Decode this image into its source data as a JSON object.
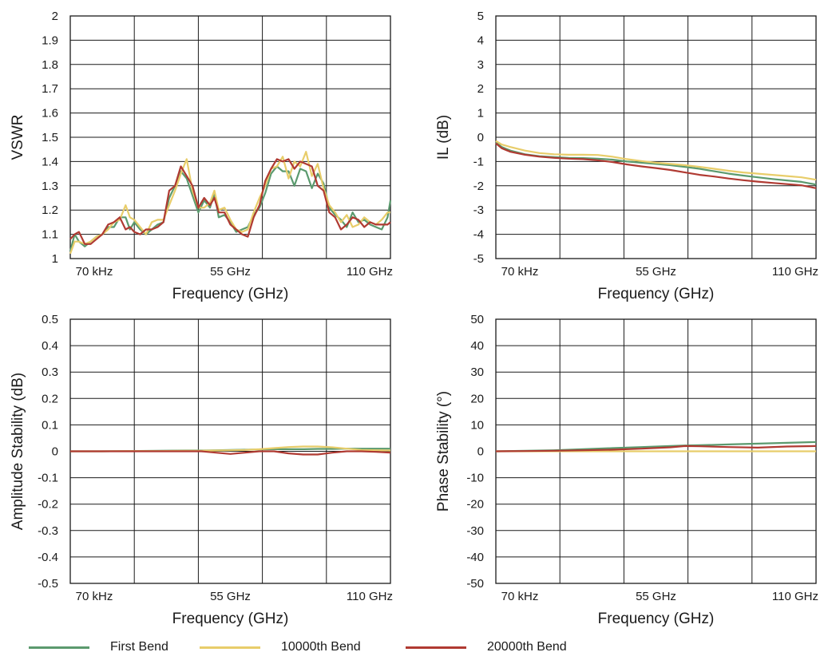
{
  "legend": {
    "items": [
      {
        "label": "First Bend",
        "color": "#5b9a6e"
      },
      {
        "label": "10000th Bend",
        "color": "#e8cd6a"
      },
      {
        "label": "20000th Bend",
        "color": "#b03a32"
      }
    ]
  },
  "chart_data": [
    {
      "type": "line",
      "ylabel": "VSWR",
      "xlabel": "Frequency (GHz)",
      "xlim": [
        0,
        110
      ],
      "ylim": [
        1,
        2
      ],
      "yticks": [
        1,
        1.1,
        1.2,
        1.3,
        1.4,
        1.5,
        1.6,
        1.7,
        1.8,
        1.9,
        2
      ],
      "xtick_labels": [
        "70 kHz",
        "55 GHz",
        "110 GHz"
      ],
      "grid": true,
      "x": [
        0,
        1.5,
        3,
        5,
        7,
        9,
        11,
        13,
        15,
        17,
        19,
        20.5,
        22,
        24,
        26,
        28,
        30,
        32,
        34,
        36,
        38,
        40,
        42,
        44,
        46,
        48,
        49.5,
        51,
        53,
        55,
        57,
        59,
        61,
        63,
        65,
        67,
        69,
        71,
        73,
        75,
        77,
        79,
        81,
        83,
        85,
        87,
        89,
        91,
        93,
        95,
        97,
        99,
        101,
        103,
        105,
        107,
        109,
        110
      ],
      "series": [
        {
          "name": "First Bend",
          "color": "#5b9a6e",
          "values": [
            1.03,
            1.1,
            1.07,
            1.05,
            1.07,
            1.09,
            1.1,
            1.13,
            1.13,
            1.17,
            1.17,
            1.12,
            1.15,
            1.12,
            1.1,
            1.12,
            1.14,
            1.15,
            1.25,
            1.3,
            1.36,
            1.33,
            1.26,
            1.19,
            1.24,
            1.21,
            1.27,
            1.17,
            1.18,
            1.15,
            1.11,
            1.12,
            1.13,
            1.18,
            1.21,
            1.27,
            1.35,
            1.38,
            1.36,
            1.36,
            1.3,
            1.37,
            1.36,
            1.29,
            1.35,
            1.31,
            1.21,
            1.18,
            1.16,
            1.13,
            1.19,
            1.15,
            1.16,
            1.14,
            1.13,
            1.12,
            1.17,
            1.24
          ]
        },
        {
          "name": "10000th Bend",
          "color": "#e8cd6a",
          "values": [
            1.02,
            1.07,
            1.07,
            1.06,
            1.07,
            1.09,
            1.1,
            1.12,
            1.15,
            1.16,
            1.22,
            1.17,
            1.16,
            1.13,
            1.1,
            1.15,
            1.16,
            1.16,
            1.22,
            1.28,
            1.35,
            1.41,
            1.28,
            1.21,
            1.21,
            1.23,
            1.28,
            1.2,
            1.21,
            1.16,
            1.12,
            1.11,
            1.12,
            1.19,
            1.25,
            1.3,
            1.37,
            1.38,
            1.42,
            1.33,
            1.4,
            1.38,
            1.44,
            1.34,
            1.39,
            1.29,
            1.22,
            1.19,
            1.15,
            1.18,
            1.13,
            1.14,
            1.17,
            1.15,
            1.14,
            1.16,
            1.19,
            1.19
          ]
        },
        {
          "name": "20000th Bend",
          "color": "#b03a32",
          "values": [
            1.08,
            1.1,
            1.11,
            1.06,
            1.06,
            1.08,
            1.1,
            1.14,
            1.15,
            1.17,
            1.12,
            1.13,
            1.11,
            1.1,
            1.12,
            1.12,
            1.13,
            1.15,
            1.28,
            1.3,
            1.38,
            1.34,
            1.3,
            1.21,
            1.25,
            1.22,
            1.25,
            1.19,
            1.19,
            1.14,
            1.12,
            1.1,
            1.09,
            1.17,
            1.22,
            1.32,
            1.37,
            1.41,
            1.4,
            1.41,
            1.37,
            1.4,
            1.39,
            1.38,
            1.3,
            1.28,
            1.19,
            1.17,
            1.12,
            1.14,
            1.17,
            1.16,
            1.13,
            1.15,
            1.14,
            1.14,
            1.14,
            1.15
          ]
        }
      ]
    },
    {
      "type": "line",
      "ylabel": "IL (dB)",
      "xlabel": "Frequency (GHz)",
      "xlim": [
        0,
        110
      ],
      "ylim": [
        -5,
        5
      ],
      "yticks": [
        -5,
        -4,
        -3,
        -2,
        -1,
        0,
        1,
        2,
        3,
        4,
        5
      ],
      "xtick_labels": [
        "70 kHz",
        "55 GHz",
        "110 GHz"
      ],
      "grid": true,
      "x": [
        0,
        2,
        5,
        10,
        15,
        20,
        25,
        30,
        35,
        40,
        45,
        50,
        55,
        60,
        65,
        70,
        75,
        80,
        85,
        90,
        95,
        100,
        105,
        110
      ],
      "series": [
        {
          "name": "First Bend",
          "color": "#5b9a6e",
          "values": [
            -0.2,
            -0.4,
            -0.55,
            -0.7,
            -0.78,
            -0.82,
            -0.85,
            -0.86,
            -0.88,
            -0.92,
            -1.0,
            -1.05,
            -1.1,
            -1.15,
            -1.22,
            -1.3,
            -1.4,
            -1.5,
            -1.58,
            -1.65,
            -1.72,
            -1.78,
            -1.84,
            -1.95
          ]
        },
        {
          "name": "10000th Bend",
          "color": "#e8cd6a",
          "values": [
            -0.15,
            -0.3,
            -0.4,
            -0.55,
            -0.65,
            -0.7,
            -0.72,
            -0.72,
            -0.73,
            -0.8,
            -0.9,
            -0.98,
            -1.05,
            -1.1,
            -1.15,
            -1.22,
            -1.3,
            -1.38,
            -1.45,
            -1.5,
            -1.55,
            -1.6,
            -1.65,
            -1.75
          ]
        },
        {
          "name": "20000th Bend",
          "color": "#b03a32",
          "values": [
            -0.25,
            -0.45,
            -0.6,
            -0.72,
            -0.8,
            -0.85,
            -0.88,
            -0.9,
            -0.95,
            -1.02,
            -1.12,
            -1.2,
            -1.27,
            -1.35,
            -1.45,
            -1.55,
            -1.62,
            -1.7,
            -1.77,
            -1.83,
            -1.88,
            -1.93,
            -1.98,
            -2.1
          ]
        }
      ]
    },
    {
      "type": "line",
      "ylabel": "Amplitude Stability (dB)",
      "xlabel": "Frequency (GHz)",
      "xlim": [
        0,
        110
      ],
      "ylim": [
        -0.5,
        0.5
      ],
      "yticks": [
        -0.5,
        -0.4,
        -0.3,
        -0.2,
        -0.1,
        0,
        0.1,
        0.2,
        0.3,
        0.4,
        0.5
      ],
      "xtick_labels": [
        "70 kHz",
        "55 GHz",
        "110 GHz"
      ],
      "grid": true,
      "x": [
        0,
        10,
        20,
        30,
        40,
        45,
        50,
        55,
        60,
        65,
        70,
        75,
        80,
        85,
        90,
        95,
        100,
        105,
        110
      ],
      "series": [
        {
          "name": "First Bend",
          "color": "#5b9a6e",
          "values": [
            0,
            0,
            0.001,
            0.002,
            0.003,
            0.003,
            0.004,
            0.005,
            0.006,
            0.007,
            0.008,
            0.008,
            0.008,
            0.009,
            0.009,
            0.01,
            0.01,
            0.01,
            0.01
          ]
        },
        {
          "name": "10000th Bend",
          "color": "#e8cd6a",
          "values": [
            0,
            0,
            0.001,
            0.001,
            0.002,
            0.002,
            0.003,
            0.004,
            0.005,
            0.008,
            0.012,
            0.016,
            0.018,
            0.018,
            0.015,
            0.01,
            0.005,
            0.004,
            0.003
          ]
        },
        {
          "name": "20000th Bend",
          "color": "#b03a32",
          "values": [
            0,
            0,
            0,
            0,
            0,
            0,
            -0.005,
            -0.01,
            -0.005,
            0,
            0,
            -0.008,
            -0.012,
            -0.012,
            -0.005,
            0,
            0,
            -0.002,
            -0.005
          ]
        }
      ]
    },
    {
      "type": "line",
      "ylabel": "Phase Stability (°)",
      "xlabel": "Frequency (GHz)",
      "xlim": [
        0,
        110
      ],
      "ylim": [
        -50,
        50
      ],
      "yticks": [
        -50,
        -40,
        -30,
        -20,
        -10,
        0,
        10,
        20,
        30,
        40,
        50
      ],
      "xtick_labels": [
        "70 kHz",
        "55 GHz",
        "110 GHz"
      ],
      "grid": true,
      "x": [
        0,
        10,
        20,
        30,
        40,
        50,
        60,
        65,
        70,
        80,
        90,
        100,
        110
      ],
      "series": [
        {
          "name": "First Bend",
          "color": "#5b9a6e",
          "values": [
            0,
            0.2,
            0.4,
            0.8,
            1.2,
            1.6,
            2.0,
            2.2,
            2.3,
            2.6,
            2.9,
            3.2,
            3.5
          ]
        },
        {
          "name": "10000th Bend",
          "color": "#e8cd6a",
          "values": [
            0,
            0,
            0,
            0,
            0,
            0,
            0,
            0,
            0,
            0,
            0,
            0,
            0
          ]
        },
        {
          "name": "20000th Bend",
          "color": "#b03a32",
          "values": [
            0,
            0.1,
            0.2,
            0.4,
            0.6,
            1.0,
            1.5,
            2.0,
            1.9,
            1.6,
            1.4,
            1.8,
            2.0
          ]
        }
      ]
    }
  ]
}
